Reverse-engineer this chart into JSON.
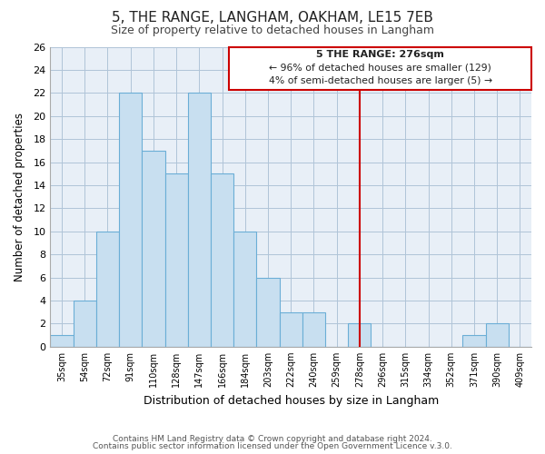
{
  "title": "5, THE RANGE, LANGHAM, OAKHAM, LE15 7EB",
  "subtitle": "Size of property relative to detached houses in Langham",
  "xlabel": "Distribution of detached houses by size in Langham",
  "ylabel": "Number of detached properties",
  "bar_labels": [
    "35sqm",
    "54sqm",
    "72sqm",
    "91sqm",
    "110sqm",
    "128sqm",
    "147sqm",
    "166sqm",
    "184sqm",
    "203sqm",
    "222sqm",
    "240sqm",
    "259sqm",
    "278sqm",
    "296sqm",
    "315sqm",
    "334sqm",
    "352sqm",
    "371sqm",
    "390sqm",
    "409sqm"
  ],
  "bar_values": [
    1,
    4,
    10,
    22,
    17,
    15,
    22,
    15,
    10,
    6,
    3,
    3,
    0,
    2,
    0,
    0,
    0,
    0,
    1,
    2,
    0
  ],
  "bar_color": "#c8dff0",
  "bar_edge_color": "#6baed6",
  "plot_bg_color": "#e8eff7",
  "vline_x": 13,
  "vline_color": "#cc0000",
  "annotation_title": "5 THE RANGE: 276sqm",
  "annotation_line1": "← 96% of detached houses are smaller (129)",
  "annotation_line2": "4% of semi-detached houses are larger (5) →",
  "annotation_box_color": "#ffffff",
  "annotation_box_edge": "#cc0000",
  "ylim": [
    0,
    26
  ],
  "yticks": [
    0,
    2,
    4,
    6,
    8,
    10,
    12,
    14,
    16,
    18,
    20,
    22,
    24,
    26
  ],
  "footer1": "Contains HM Land Registry data © Crown copyright and database right 2024.",
  "footer2": "Contains public sector information licensed under the Open Government Licence v.3.0.",
  "title_fontsize": 11,
  "subtitle_fontsize": 9,
  "background_color": "#ffffff",
  "grid_color": "#b0c4d8"
}
